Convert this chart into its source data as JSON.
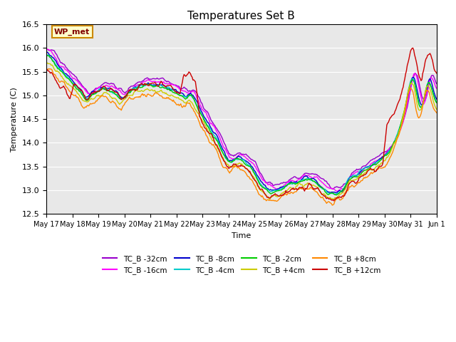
{
  "title": "Temperatures Set B",
  "xlabel": "Time",
  "ylabel": "Temperature (C)",
  "ylim": [
    12.5,
    16.5
  ],
  "bg_color": "#e8e8e8",
  "fig_color": "#ffffff",
  "annotation_text": "WP_met",
  "annotation_box_color": "#ffffcc",
  "annotation_box_edge": "#cc8800",
  "series": [
    {
      "label": "TC_B -32cm",
      "color": "#9900cc"
    },
    {
      "label": "TC_B -16cm",
      "color": "#ff00ff"
    },
    {
      "label": "TC_B -8cm",
      "color": "#0000cc"
    },
    {
      "label": "TC_B -4cm",
      "color": "#00cccc"
    },
    {
      "label": "TC_B -2cm",
      "color": "#00cc00"
    },
    {
      "label": "TC_B +4cm",
      "color": "#cccc00"
    },
    {
      "label": "TC_B +8cm",
      "color": "#ff8800"
    },
    {
      "label": "TC_B +12cm",
      "color": "#cc0000"
    }
  ],
  "xtick_labels": [
    "May 17",
    "May 18",
    "May 19",
    "May 20",
    "May 21",
    "May 22",
    "May 23",
    "May 24",
    "May 25",
    "May 26",
    "May 27",
    "May 28",
    "May 29",
    "May 30",
    "May 31",
    "Jun 1"
  ],
  "n_points": 480,
  "linewidth": 1.0
}
